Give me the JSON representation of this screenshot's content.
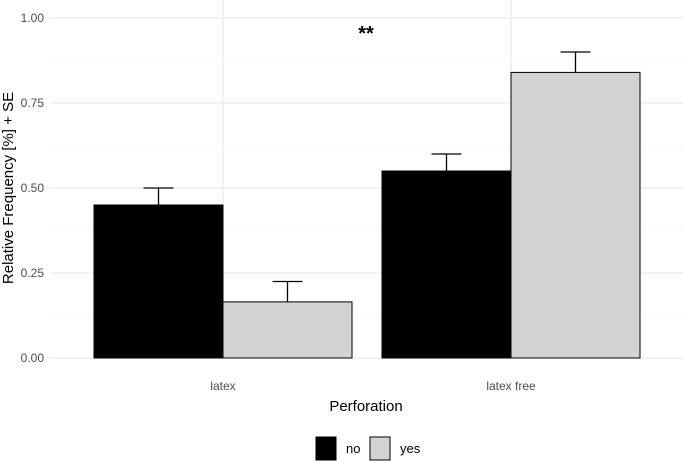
{
  "chart_data": {
    "type": "bar",
    "xlabel": "Perforation",
    "ylabel": "Relative Frequency [%] + SE",
    "categories": [
      "latex",
      "latex free"
    ],
    "series": [
      {
        "name": "no",
        "values": [
          0.45,
          0.55
        ],
        "se": [
          0.05,
          0.05
        ],
        "color": "#000000"
      },
      {
        "name": "yes",
        "values": [
          0.165,
          0.84
        ],
        "se": [
          0.06,
          0.06
        ],
        "color": "#d3d3d3"
      }
    ],
    "ylim": [
      0,
      1
    ],
    "yticks": [
      "0.00",
      "0.25",
      "0.50",
      "0.75",
      "1.00"
    ],
    "annotation": "**",
    "legend_position": "bottom",
    "grid": true
  }
}
